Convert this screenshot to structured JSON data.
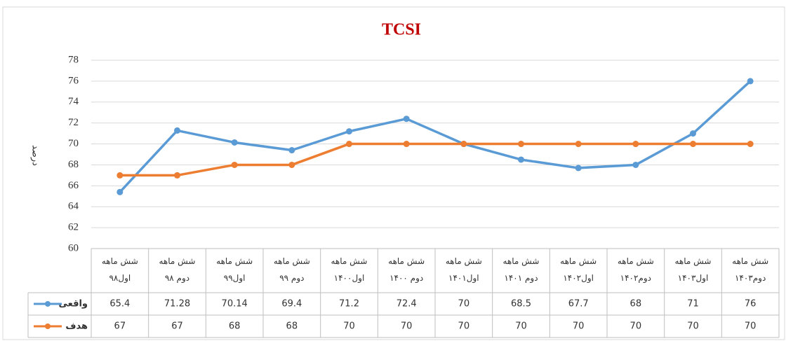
{
  "chart_data": {
    "type": "line",
    "title": "TCSI",
    "y_label": "درصد",
    "categories": [
      "شش ماهه اول۹۸",
      "شش ماهه دوم ۹۸",
      "شش ماهه اول۹۹",
      "شش ماهه دوم ۹۹",
      "شش ماهه اول۱۴۰۰",
      "شش ماهه دوم ۱۴۰۰",
      "شش ماهه اول۱۴۰۱",
      "شش ماهه دوم ۱۴۰۱",
      "شش ماهه اول۱۴۰۲",
      "شش ماهه دوم۱۴۰۲",
      "شش ماهه اول۱۴۰۳",
      "شش ماهه دوم۱۴۰۳"
    ],
    "series": [
      {
        "name": "واقعی",
        "color": "#5b9bd5",
        "values": [
          65.4,
          71.28,
          70.14,
          69.4,
          71.2,
          72.4,
          70,
          68.5,
          67.7,
          68,
          71,
          76
        ]
      },
      {
        "name": "هدف",
        "color": "#ed7d31",
        "values": [
          67,
          67,
          68,
          68,
          70,
          70,
          70,
          70,
          70,
          70,
          70,
          70
        ]
      }
    ],
    "ylim": [
      60,
      78
    ],
    "yticks": [
      60,
      62,
      64,
      66,
      68,
      70,
      72,
      74,
      76,
      78
    ],
    "grid": true
  }
}
